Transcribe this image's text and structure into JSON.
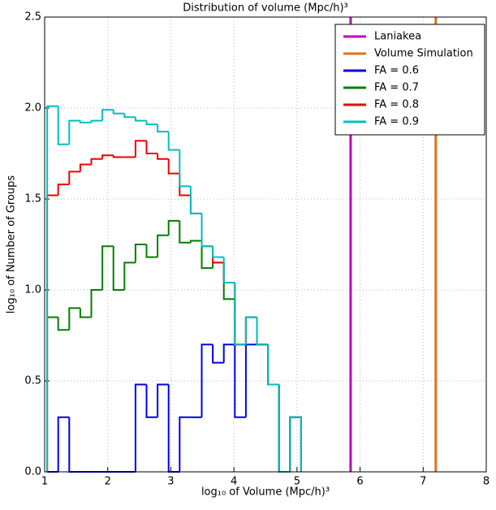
{
  "chart_data": {
    "type": "step-histogram",
    "title": "Distribution of volume (Mpc/h)³",
    "xlabel": "log₁₀ of Volume (Mpc/h)³",
    "ylabel": "log₁₀ of Number of Groups",
    "bins": [
      1.04,
      1.215,
      1.39,
      1.565,
      1.74,
      1.915,
      2.09,
      2.265,
      2.44,
      2.615,
      2.79,
      2.965,
      3.14,
      3.315,
      3.49,
      3.665,
      3.84,
      4.015,
      4.19,
      4.365,
      4.54,
      4.715,
      4.89,
      5.065
    ],
    "vlines": [
      {
        "name": "Laniakea",
        "color": "#bf00bf",
        "x": 5.85
      },
      {
        "name": "Volume Simulation",
        "color": "#e0701e",
        "x": 7.2
      }
    ],
    "series": [
      {
        "name": "FA = 0.6",
        "color": "#0000ee",
        "values": [
          0,
          0.3,
          0,
          0,
          0,
          0,
          0,
          0,
          0.48,
          0.3,
          0.48,
          0,
          0.3,
          0.3,
          0.7,
          0.6,
          0.7,
          0.3,
          0.7,
          0.7,
          0.48,
          0,
          0.3
        ]
      },
      {
        "name": "FA = 0.7",
        "color": "#007f00",
        "values": [
          0.85,
          0.78,
          0.9,
          0.85,
          1.0,
          1.24,
          1.0,
          1.15,
          1.25,
          1.18,
          1.3,
          1.38,
          1.26,
          1.27,
          1.12,
          1.15,
          0.95,
          0.7,
          0.85,
          0.7,
          0.48,
          0,
          0.3
        ]
      },
      {
        "name": "FA = 0.8",
        "color": "#ee0000",
        "values": [
          1.52,
          1.58,
          1.65,
          1.69,
          1.72,
          1.74,
          1.73,
          1.73,
          1.82,
          1.75,
          1.72,
          1.64,
          1.52,
          1.42,
          1.24,
          1.15,
          1.04,
          0.7,
          0.85,
          0.7,
          0.48,
          0,
          0.3
        ]
      },
      {
        "name": "FA = 0.9",
        "color": "#00bfbf",
        "values": [
          2.01,
          1.8,
          1.93,
          1.92,
          1.93,
          1.99,
          1.97,
          1.95,
          1.93,
          1.91,
          1.87,
          1.77,
          1.57,
          1.42,
          1.24,
          1.18,
          1.04,
          0.7,
          0.85,
          0.7,
          0.48,
          0,
          0.3
        ]
      }
    ],
    "xlim": [
      1,
      8
    ],
    "xticks": [
      1,
      2,
      3,
      4,
      5,
      6,
      7,
      8
    ],
    "ylim": [
      0,
      2.5
    ],
    "yticks": [
      {
        "value": 0,
        "label": "0.0"
      },
      0.5,
      {
        "value": 1,
        "label": "1.0"
      },
      1.5,
      {
        "value": 2,
        "label": "2.0"
      },
      2.5
    ],
    "grid": true,
    "legend": "upper right"
  }
}
